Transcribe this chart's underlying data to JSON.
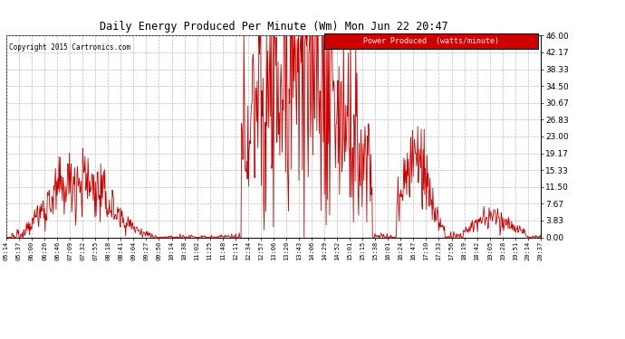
{
  "title": "Daily Energy Produced Per Minute (Wm) Mon Jun 22 20:47",
  "copyright": "Copyright 2015 Cartronics.com",
  "legend_label": "Power Produced  (watts/minute)",
  "legend_bg": "#cc0000",
  "legend_text_color": "#ffffff",
  "line_color": "#cc0000",
  "bg_color": "#ffffff",
  "grid_color": "#bbbbbb",
  "ymax": 46.0,
  "yticks": [
    0.0,
    3.83,
    7.67,
    11.5,
    15.33,
    19.17,
    23.0,
    26.83,
    30.67,
    34.5,
    38.33,
    42.17,
    46.0
  ],
  "xtick_labels": [
    "05:14",
    "05:37",
    "06:00",
    "06:26",
    "06:46",
    "07:09",
    "07:32",
    "07:55",
    "08:18",
    "08:41",
    "09:04",
    "09:27",
    "09:50",
    "10:14",
    "10:38",
    "11:02",
    "11:25",
    "11:48",
    "12:11",
    "12:34",
    "12:57",
    "13:06",
    "13:20",
    "13:43",
    "14:06",
    "14:29",
    "14:52",
    "15:01",
    "15:15",
    "15:38",
    "16:01",
    "16:24",
    "16:47",
    "17:10",
    "17:33",
    "17:56",
    "18:19",
    "18:42",
    "19:05",
    "19:28",
    "19:51",
    "20:14",
    "20:37"
  ]
}
